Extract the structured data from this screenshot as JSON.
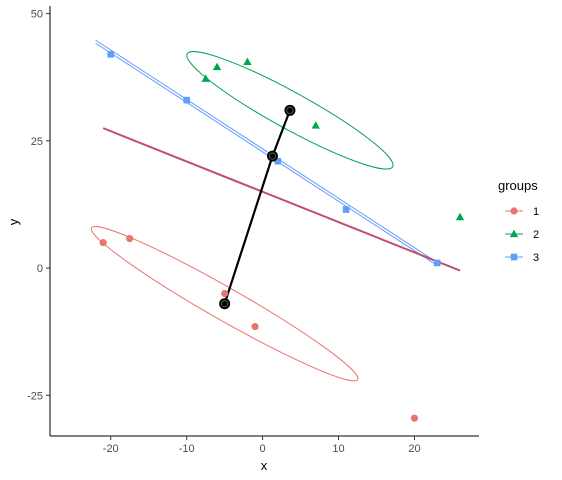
{
  "chart_data": {
    "type": "scatter",
    "title": "",
    "xlabel": "x",
    "ylabel": "y",
    "xlim": [
      -28,
      28.5
    ],
    "ylim": [
      -33,
      51.5
    ],
    "x_ticks": [
      -20,
      -10,
      0,
      10,
      20
    ],
    "x_tick_labels": [
      "-20",
      "-10",
      "0",
      "10",
      "20"
    ],
    "y_ticks": [
      -25,
      0,
      25,
      50
    ],
    "y_tick_labels": [
      "-25",
      "0",
      "25",
      "50"
    ],
    "grid": false,
    "legend": {
      "title": "groups",
      "placement": "right",
      "entries": [
        "1",
        "2",
        "3"
      ]
    },
    "series": [
      {
        "name": "1",
        "color": "#E7756B",
        "shape": "circle",
        "points": [
          [
            -21,
            5
          ],
          [
            -17.5,
            5.8
          ],
          [
            -5,
            -5
          ],
          [
            -1,
            -11.5
          ],
          [
            20,
            -29.5
          ]
        ],
        "ellipse": {
          "cx": -5,
          "cy": -7,
          "rx": 23,
          "ry": 3.2,
          "slope": -0.85
        }
      },
      {
        "name": "2",
        "color": "#00A651",
        "shape": "triangle",
        "points": [
          [
            -7.5,
            37.2
          ],
          [
            -6,
            39.5
          ],
          [
            -2,
            40.5
          ],
          [
            7,
            28
          ],
          [
            26,
            10
          ]
        ],
        "ellipse": {
          "cx": 3.6,
          "cy": 31,
          "rx": 17.5,
          "ry": 3.6,
          "slope": -0.82
        }
      },
      {
        "name": "3",
        "color": "#619CFF",
        "shape": "square",
        "points": [
          [
            -20,
            42
          ],
          [
            -10,
            33
          ],
          [
            2,
            21
          ],
          [
            11,
            11.5
          ],
          [
            23,
            1
          ]
        ],
        "fit_line": [
          [
            -22,
            44.5
          ],
          [
            23,
            0.8
          ]
        ]
      }
    ],
    "centroids": [
      [
        -5,
        -7
      ],
      [
        1.3,
        22
      ],
      [
        3.6,
        31
      ]
    ],
    "centroid_path": [
      [
        -5,
        -7
      ],
      [
        1.3,
        22
      ],
      [
        3.6,
        31
      ]
    ],
    "overall_line": {
      "color": "#C0506A",
      "points": [
        [
          -21,
          27.5
        ],
        [
          26,
          -0.5
        ]
      ]
    },
    "centroid_color": "#000000"
  }
}
